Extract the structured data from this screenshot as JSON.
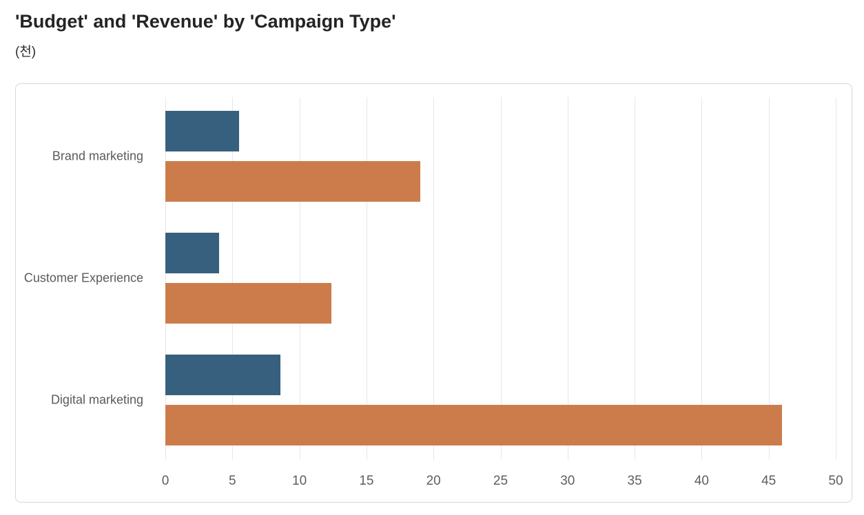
{
  "page": {
    "title": "'Budget' and 'Revenue' by 'Campaign Type'",
    "units_label": "(천)"
  },
  "chart_data": {
    "type": "bar",
    "orientation": "horizontal",
    "title": "'Budget' and 'Revenue' by 'Campaign Type'",
    "subtitle": "(천)",
    "categories": [
      "Brand marketing",
      "Customer Experience",
      "Digital marketing"
    ],
    "series": [
      {
        "name": "Budget",
        "color": "#36607E",
        "values": [
          5.5,
          4,
          8.6
        ]
      },
      {
        "name": "Revenue",
        "color": "#CC7C4B",
        "values": [
          19,
          12.4,
          46
        ]
      }
    ],
    "x_axis": {
      "min": 0,
      "max": 50,
      "tick_step": 5,
      "tick_labels": [
        "0",
        "5",
        "10",
        "15",
        "20",
        "25",
        "30",
        "35",
        "40",
        "45",
        "50"
      ]
    },
    "grid": "vertical-only",
    "gridline_color": "#e6e6e6",
    "legend": "none",
    "xlabel": "",
    "ylabel": ""
  }
}
